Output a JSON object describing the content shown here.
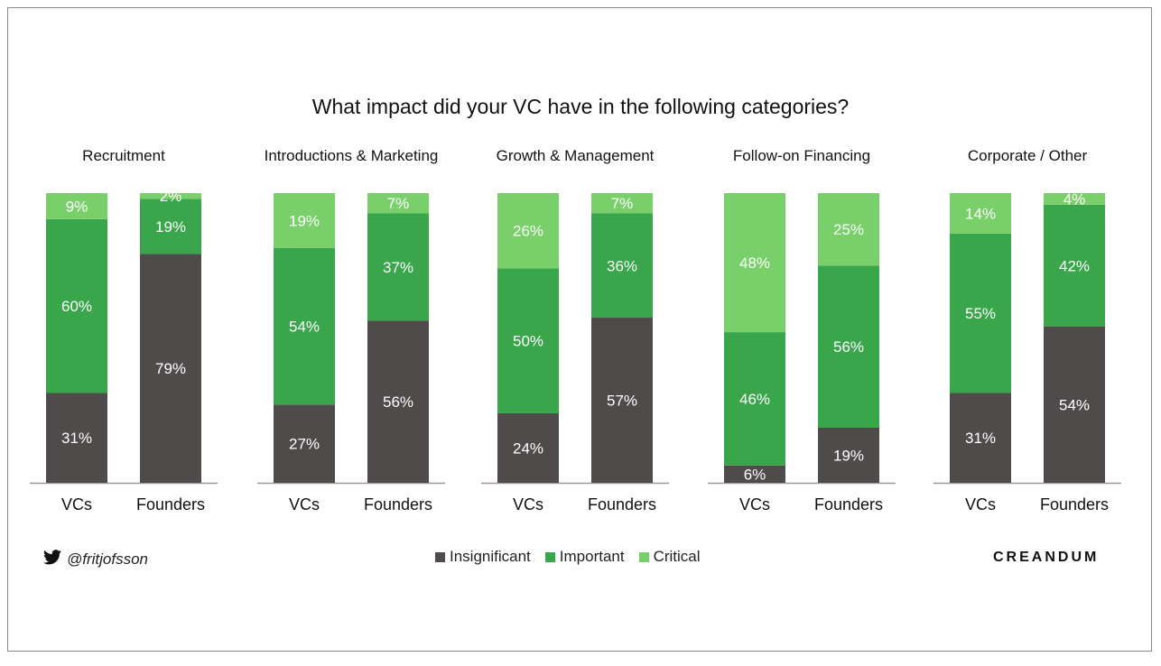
{
  "title": "What impact did your VC have in the following categories?",
  "colors": {
    "Insignificant": "#4e4b4a",
    "Important": "#3aa64c",
    "Critical": "#79d06b"
  },
  "footer": {
    "handle": "@fritjofsson",
    "handle_icon": "twitter-bird-icon",
    "brand": "CREANDUM"
  },
  "legend": [
    "Insignificant",
    "Important",
    "Critical"
  ],
  "chart_data": [
    {
      "type": "bar",
      "stacked": true,
      "title": "Recruitment",
      "categories": [
        "VCs",
        "Founders"
      ],
      "series": [
        {
          "name": "Insignificant",
          "values": [
            31,
            79
          ]
        },
        {
          "name": "Important",
          "values": [
            60,
            19
          ]
        },
        {
          "name": "Critical",
          "values": [
            9,
            2
          ]
        }
      ]
    },
    {
      "type": "bar",
      "stacked": true,
      "title": "Introductions & Marketing",
      "categories": [
        "VCs",
        "Founders"
      ],
      "series": [
        {
          "name": "Insignificant",
          "values": [
            27,
            56
          ]
        },
        {
          "name": "Important",
          "values": [
            54,
            37
          ]
        },
        {
          "name": "Critical",
          "values": [
            19,
            7
          ]
        }
      ]
    },
    {
      "type": "bar",
      "stacked": true,
      "title": "Growth & Management",
      "categories": [
        "VCs",
        "Founders"
      ],
      "series": [
        {
          "name": "Insignificant",
          "values": [
            24,
            57
          ]
        },
        {
          "name": "Important",
          "values": [
            50,
            36
          ]
        },
        {
          "name": "Critical",
          "values": [
            26,
            7
          ]
        }
      ]
    },
    {
      "type": "bar",
      "stacked": true,
      "title": "Follow-on Financing",
      "categories": [
        "VCs",
        "Founders"
      ],
      "series": [
        {
          "name": "Insignificant",
          "values": [
            6,
            19
          ]
        },
        {
          "name": "Important",
          "values": [
            46,
            56
          ]
        },
        {
          "name": "Critical",
          "values": [
            48,
            25
          ]
        }
      ]
    },
    {
      "type": "bar",
      "stacked": true,
      "title": "Corporate / Other",
      "categories": [
        "VCs",
        "Founders"
      ],
      "series": [
        {
          "name": "Insignificant",
          "values": [
            31,
            54
          ]
        },
        {
          "name": "Important",
          "values": [
            55,
            42
          ]
        },
        {
          "name": "Critical",
          "values": [
            14,
            4
          ]
        }
      ]
    }
  ]
}
